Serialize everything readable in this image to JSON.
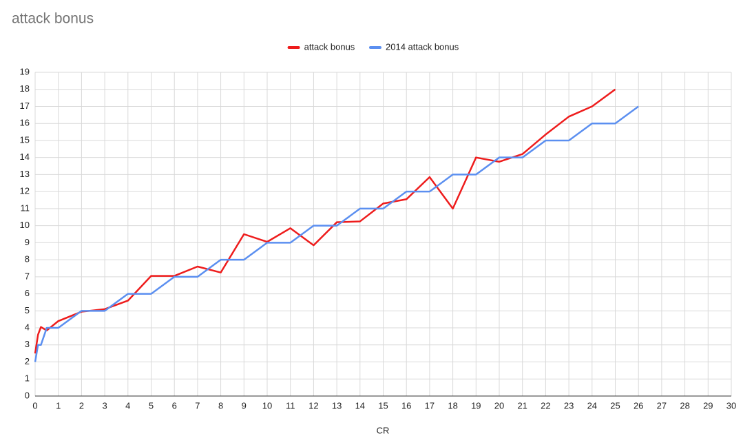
{
  "chart_data": {
    "type": "line",
    "title": "attack bonus",
    "x_label": "CR",
    "x": [
      0,
      0.125,
      0.25,
      0.5,
      1,
      2,
      3,
      4,
      5,
      6,
      7,
      8,
      9,
      10,
      11,
      12,
      13,
      14,
      15,
      16,
      17,
      18,
      19,
      20,
      21,
      22,
      23,
      24,
      25,
      26
    ],
    "series": [
      {
        "name": "attack bonus",
        "color": "#ee1c1c",
        "values": [
          2.5,
          3.6,
          4.05,
          3.85,
          4.4,
          4.95,
          5.1,
          5.6,
          7.05,
          7.05,
          7.6,
          7.25,
          9.5,
          9.05,
          9.85,
          8.85,
          10.2,
          10.25,
          11.3,
          11.55,
          12.85,
          11,
          14,
          13.75,
          14.2,
          15.35,
          16.4,
          17,
          18,
          null
        ]
      },
      {
        "name": "2014 attack bonus",
        "color": "#5b8ff0",
        "values": [
          2,
          3,
          3,
          4,
          4,
          5,
          5,
          6,
          6,
          7,
          7,
          8,
          8,
          9,
          9,
          10,
          10,
          11,
          11,
          12,
          12,
          13,
          13,
          14,
          14,
          15,
          15,
          16,
          16,
          17
        ]
      }
    ],
    "xlim": [
      0,
      30
    ],
    "xticks": [
      0,
      1,
      2,
      3,
      4,
      5,
      6,
      7,
      8,
      9,
      10,
      11,
      12,
      13,
      14,
      15,
      16,
      17,
      18,
      19,
      20,
      21,
      22,
      23,
      24,
      25,
      26,
      27,
      28,
      29,
      30
    ],
    "ylim": [
      0,
      19
    ],
    "yticks": [
      0,
      1,
      2,
      3,
      4,
      5,
      6,
      7,
      8,
      9,
      10,
      11,
      12,
      13,
      14,
      15,
      16,
      17,
      18,
      19
    ],
    "grid": true,
    "legend": "top"
  }
}
